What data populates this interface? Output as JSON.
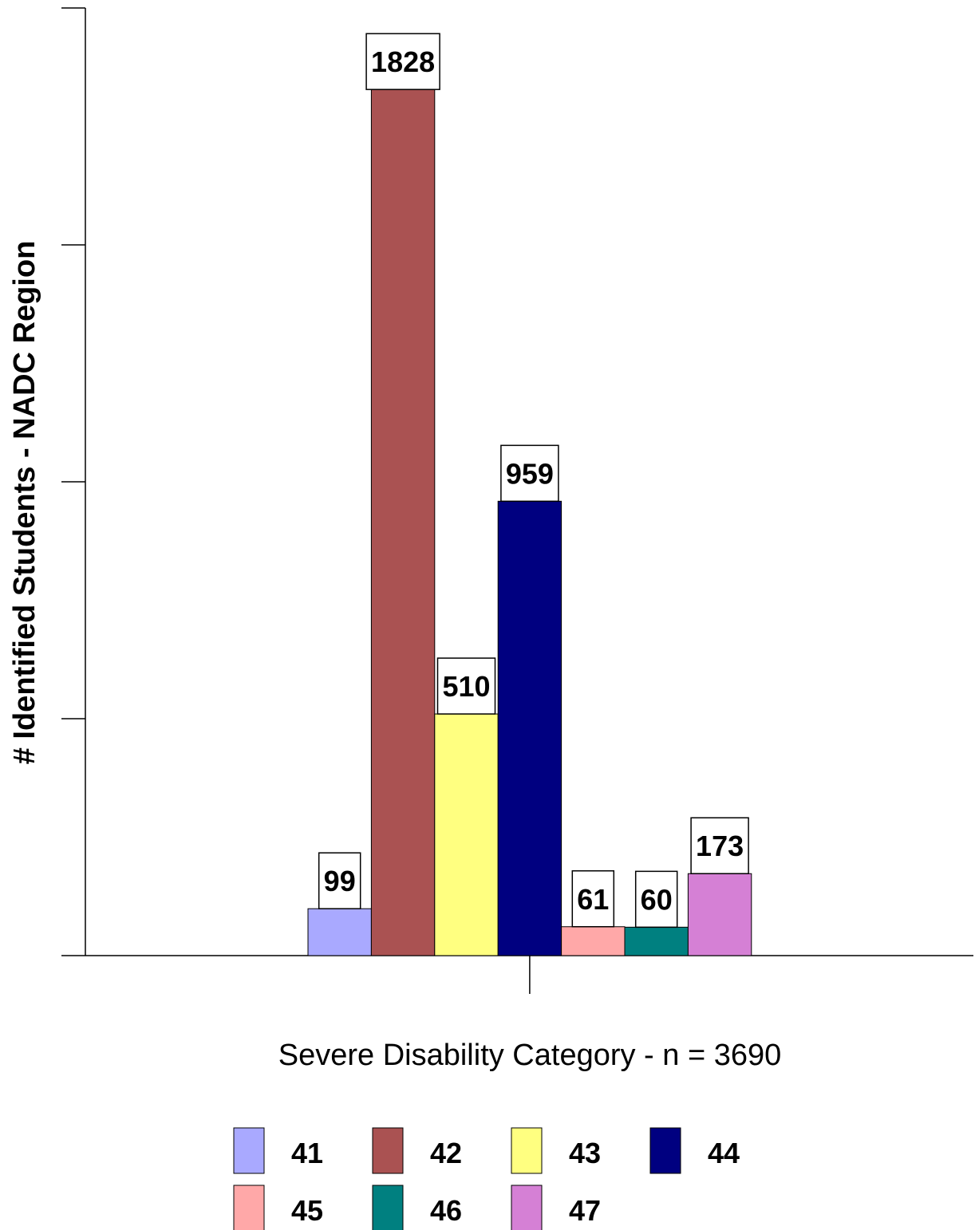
{
  "chart_data": {
    "type": "bar",
    "ylabel": "# Identified Students - NADC Region",
    "xlabel": "Severe Disability Category - n = 3690",
    "ylim": [
      0,
      2000
    ],
    "y_tick_step": 500,
    "grid": false,
    "legend_placement": "bottom",
    "series": [
      {
        "name": "41",
        "value": 99,
        "color": "#A9A9FF"
      },
      {
        "name": "42",
        "value": 1828,
        "color": "#AA5252"
      },
      {
        "name": "43",
        "value": 510,
        "color": "#FFFF80"
      },
      {
        "name": "44",
        "value": 959,
        "color": "#000080"
      },
      {
        "name": "45",
        "value": 61,
        "color": "#FFA8A8"
      },
      {
        "name": "46",
        "value": 60,
        "color": "#008080"
      },
      {
        "name": "47",
        "value": 173,
        "color": "#D580D5"
      }
    ]
  }
}
